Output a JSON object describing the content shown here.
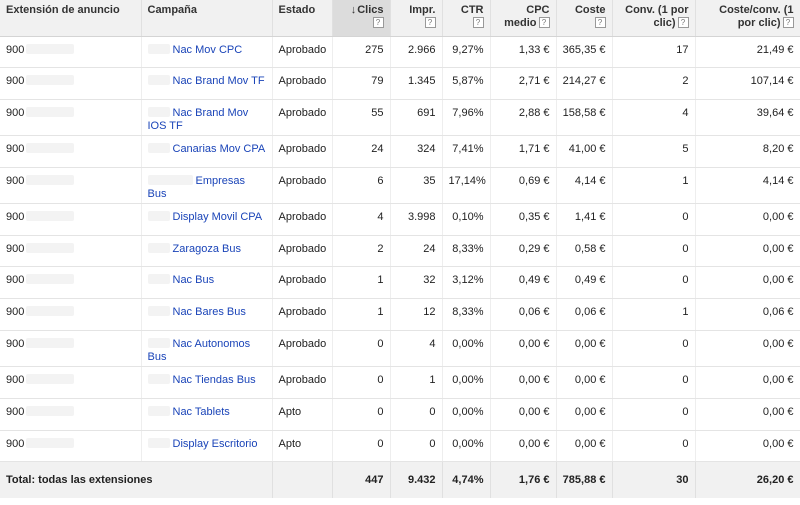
{
  "headers": {
    "extension": "Extensión de anuncio",
    "campaign": "Campaña",
    "status": "Estado",
    "clicks": "Clics",
    "impressions": "Impr.",
    "ctr": "CTR",
    "cpc": "CPC medio",
    "cost": "Coste",
    "conv": "Conv. (1 por clic)",
    "cost_conv": "Coste/conv. (1 por clic)",
    "help_glyph": "?"
  },
  "sort_indicator": "↓",
  "rows": [
    {
      "ext": "900",
      "campaign": "Nac Mov CPC",
      "status": "Aprobado",
      "clicks": "275",
      "impr": "2.966",
      "ctr": "9,27%",
      "cpc": "1,33 €",
      "cost": "365,35 €",
      "conv": "17",
      "cost_conv": "21,49 €"
    },
    {
      "ext": "900",
      "campaign": "Nac Brand Mov TF",
      "status": "Aprobado",
      "clicks": "79",
      "impr": "1.345",
      "ctr": "5,87%",
      "cpc": "2,71 €",
      "cost": "214,27 €",
      "conv": "2",
      "cost_conv": "107,14 €"
    },
    {
      "ext": "900",
      "campaign": "Nac Brand Mov IOS TF",
      "status": "Aprobado",
      "clicks": "55",
      "impr": "691",
      "ctr": "7,96%",
      "cpc": "2,88 €",
      "cost": "158,58 €",
      "conv": "4",
      "cost_conv": "39,64 €"
    },
    {
      "ext": "900",
      "campaign": "Canarias Mov CPA",
      "status": "Aprobado",
      "clicks": "24",
      "impr": "324",
      "ctr": "7,41%",
      "cpc": "1,71 €",
      "cost": "41,00 €",
      "conv": "5",
      "cost_conv": "8,20 €"
    },
    {
      "ext": "900",
      "campaign": "Empresas Bus",
      "status": "Aprobado",
      "clicks": "6",
      "impr": "35",
      "ctr": "17,14%",
      "cpc": "0,69 €",
      "cost": "4,14 €",
      "conv": "1",
      "cost_conv": "4,14 €"
    },
    {
      "ext": "900",
      "campaign": "Display Movil CPA",
      "status": "Aprobado",
      "clicks": "4",
      "impr": "3.998",
      "ctr": "0,10%",
      "cpc": "0,35 €",
      "cost": "1,41 €",
      "conv": "0",
      "cost_conv": "0,00 €"
    },
    {
      "ext": "900",
      "campaign": "Zaragoza Bus",
      "status": "Aprobado",
      "clicks": "2",
      "impr": "24",
      "ctr": "8,33%",
      "cpc": "0,29 €",
      "cost": "0,58 €",
      "conv": "0",
      "cost_conv": "0,00 €"
    },
    {
      "ext": "900",
      "campaign": "Nac Bus",
      "status": "Aprobado",
      "clicks": "1",
      "impr": "32",
      "ctr": "3,12%",
      "cpc": "0,49 €",
      "cost": "0,49 €",
      "conv": "0",
      "cost_conv": "0,00 €"
    },
    {
      "ext": "900",
      "campaign": "Nac Bares Bus",
      "status": "Aprobado",
      "clicks": "1",
      "impr": "12",
      "ctr": "8,33%",
      "cpc": "0,06 €",
      "cost": "0,06 €",
      "conv": "1",
      "cost_conv": "0,06 €"
    },
    {
      "ext": "900",
      "campaign": "Nac Autonomos Bus",
      "status": "Aprobado",
      "clicks": "0",
      "impr": "4",
      "ctr": "0,00%",
      "cpc": "0,00 €",
      "cost": "0,00 €",
      "conv": "0",
      "cost_conv": "0,00 €"
    },
    {
      "ext": "900",
      "campaign": "Nac Tiendas Bus",
      "status": "Aprobado",
      "clicks": "0",
      "impr": "1",
      "ctr": "0,00%",
      "cpc": "0,00 €",
      "cost": "0,00 €",
      "conv": "0",
      "cost_conv": "0,00 €"
    },
    {
      "ext": "900",
      "campaign": "Nac Tablets",
      "status": "Apto",
      "clicks": "0",
      "impr": "0",
      "ctr": "0,00%",
      "cpc": "0,00 €",
      "cost": "0,00 €",
      "conv": "0",
      "cost_conv": "0,00 €"
    },
    {
      "ext": "900",
      "campaign": "Display Escritorio",
      "status": "Apto",
      "clicks": "0",
      "impr": "0",
      "ctr": "0,00%",
      "cpc": "0,00 €",
      "cost": "0,00 €",
      "conv": "0",
      "cost_conv": "0,00 €"
    }
  ],
  "total": {
    "label": "Total: todas las extensiones",
    "clicks": "447",
    "impr": "9.432",
    "ctr": "4,74%",
    "cpc": "1,76 €",
    "cost": "785,88 €",
    "conv": "30",
    "cost_conv": "26,20 €"
  },
  "colors": {
    "link": "#1a44b8",
    "header_bg": "#f1f1f1",
    "sorted_header_bg": "#dcdcdc"
  }
}
